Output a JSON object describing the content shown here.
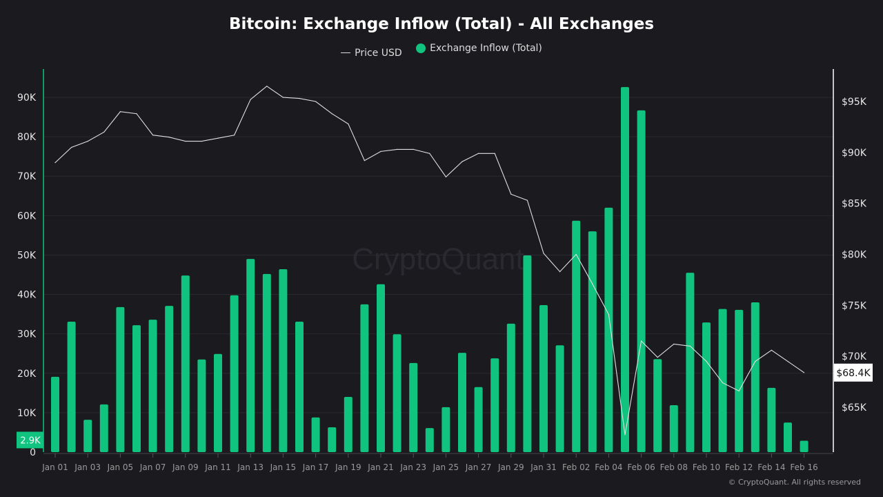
{
  "chart_data": {
    "type": "bar+line",
    "title": "Bitcoin: Exchange Inflow (Total) - All Exchanges",
    "legend": [
      "Price USD",
      "Exchange Inflow (Total)"
    ],
    "legend_placement": "top-center",
    "colors": {
      "bars": "#10c37e",
      "price_line": "#e0e0e0",
      "background": "#1b1a1f"
    },
    "categories": [
      "Jan 01",
      "Jan 02",
      "Jan 03",
      "Jan 04",
      "Jan 05",
      "Jan 06",
      "Jan 07",
      "Jan 08",
      "Jan 09",
      "Jan 10",
      "Jan 11",
      "Jan 12",
      "Jan 13",
      "Jan 14",
      "Jan 15",
      "Jan 16",
      "Jan 17",
      "Jan 18",
      "Jan 19",
      "Jan 20",
      "Jan 21",
      "Jan 22",
      "Jan 23",
      "Jan 24",
      "Jan 25",
      "Jan 26",
      "Jan 27",
      "Jan 28",
      "Jan 29",
      "Jan 30",
      "Jan 31",
      "Feb 01",
      "Feb 02",
      "Feb 03",
      "Feb 04",
      "Feb 05",
      "Feb 06",
      "Feb 07",
      "Feb 08",
      "Feb 09",
      "Feb 10",
      "Feb 11",
      "Feb 12",
      "Feb 13",
      "Feb 14",
      "Feb 15",
      "Feb 16"
    ],
    "x_tick_labels": [
      "Jan 01",
      "Jan 03",
      "Jan 05",
      "Jan 07",
      "Jan 09",
      "Jan 11",
      "Jan 13",
      "Jan 15",
      "Jan 17",
      "Jan 19",
      "Jan 21",
      "Jan 23",
      "Jan 25",
      "Jan 27",
      "Jan 29",
      "Jan 31",
      "Feb 02",
      "Feb 04",
      "Feb 06",
      "Feb 08",
      "Feb 10",
      "Feb 12",
      "Feb 14",
      "Feb 16"
    ],
    "series": [
      {
        "name": "Exchange Inflow (Total)",
        "axis": "left",
        "type": "bar",
        "values": [
          19100,
          33100,
          8200,
          12100,
          36800,
          32200,
          33600,
          37100,
          44800,
          23500,
          24900,
          39800,
          49000,
          45200,
          46400,
          33100,
          8800,
          6300,
          14000,
          37500,
          42600,
          29900,
          22600,
          6100,
          11400,
          25200,
          16500,
          23800,
          32600,
          49900,
          37300,
          27100,
          58700,
          56000,
          62000,
          92600,
          86700,
          23600,
          11900,
          45500,
          32900,
          36300,
          36100,
          38000,
          16300,
          7500,
          2900
        ]
      },
      {
        "name": "Price USD",
        "axis": "right",
        "type": "line",
        "values": [
          89000,
          90500,
          91100,
          92000,
          94000,
          93800,
          91700,
          91500,
          91100,
          91100,
          91400,
          91700,
          95200,
          96500,
          95400,
          95300,
          95000,
          93800,
          92800,
          89200,
          90100,
          90300,
          90300,
          89900,
          87600,
          89100,
          89900,
          89900,
          85900,
          85300,
          80100,
          78300,
          80000,
          77100,
          74100,
          62300,
          71500,
          69900,
          71200,
          71000,
          69500,
          67400,
          66600,
          69500,
          70600,
          69500,
          68400
        ]
      }
    ],
    "left_axis": {
      "ticks": [
        "0",
        "10K",
        "20K",
        "30K",
        "40K",
        "50K",
        "60K",
        "70K",
        "80K",
        "90K"
      ],
      "range": [
        0,
        90000
      ],
      "current_label": "2.9K"
    },
    "right_axis": {
      "ticks": [
        "$65K",
        "$70K",
        "$75K",
        "$80K",
        "$85K",
        "$90K",
        "$95K"
      ],
      "range": [
        65000,
        95000
      ],
      "current_label": "$68.4K"
    },
    "grid": true,
    "watermark": "CryptoQuant"
  },
  "credit": "© CryptoQuant. All rights reserved"
}
